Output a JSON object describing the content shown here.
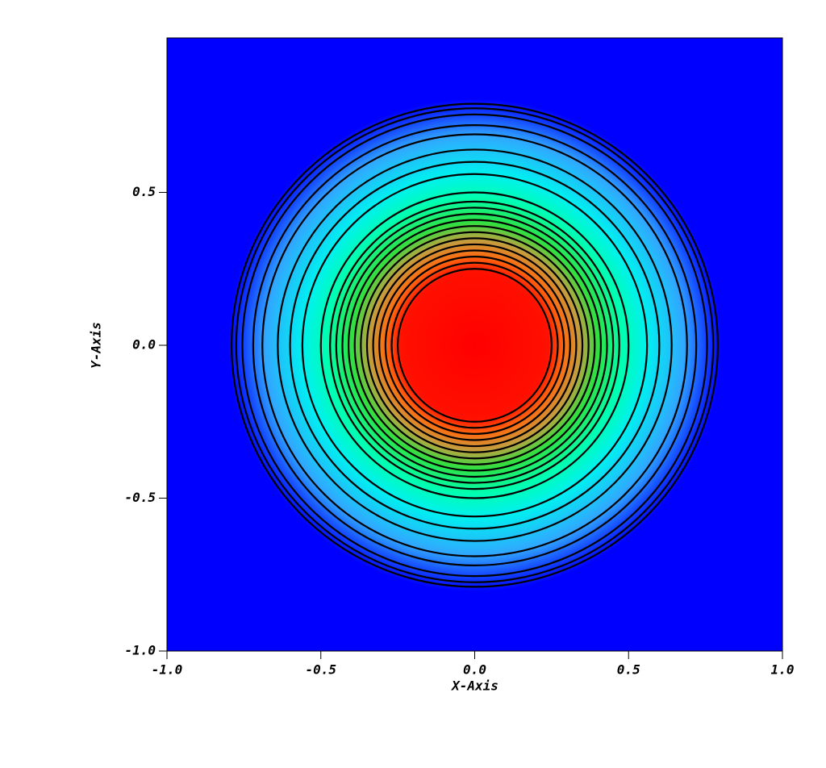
{
  "chart_data": {
    "type": "contour",
    "xlabel": "X-Axis",
    "ylabel": "Y-Axis",
    "xlim": [
      -1,
      1
    ],
    "ylim": [
      -1,
      1
    ],
    "xticks": [
      {
        "value": -1,
        "label": "-1.0"
      },
      {
        "value": -0.5,
        "label": "-0.5"
      },
      {
        "value": 0,
        "label": "0.0"
      },
      {
        "value": 0.5,
        "label": "0.5"
      },
      {
        "value": 1,
        "label": "1.0"
      }
    ],
    "yticks": [
      {
        "value": -1,
        "label": "-1.0"
      },
      {
        "value": -0.5,
        "label": "-0.5"
      },
      {
        "value": 0,
        "label": "0.0"
      },
      {
        "value": 0.5,
        "label": "0.5"
      }
    ],
    "contour_color": "#000000",
    "contour_radii": [
      0.79,
      0.775,
      0.755,
      0.72,
      0.69,
      0.64,
      0.6,
      0.56,
      0.5,
      0.47,
      0.45,
      0.43,
      0.41,
      0.39,
      0.37,
      0.35,
      0.33,
      0.31,
      0.29,
      0.27,
      0.25
    ]
  }
}
